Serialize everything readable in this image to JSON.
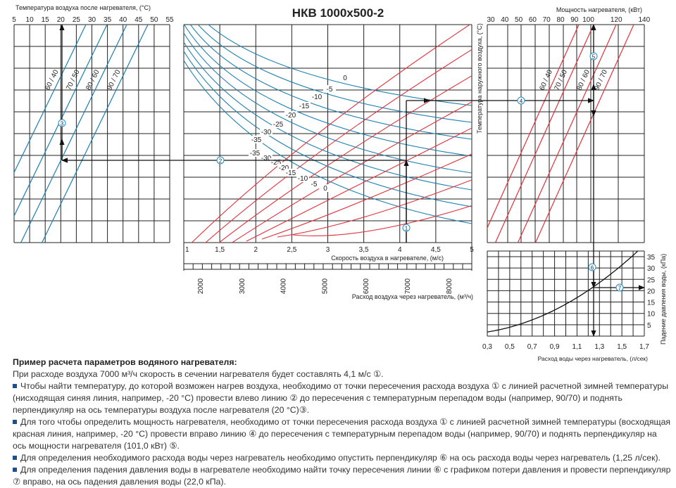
{
  "title": "НКВ 1000х500-2",
  "colors": {
    "blue": "#1a7fb0",
    "red": "#e0323c",
    "grid": "#222222",
    "marker": "#1a8fd0"
  },
  "chart_data": [
    {
      "id": "outlet-temp",
      "type": "line",
      "xlabel": "Температура воздуха после нагревателя, (°C)",
      "xticks": [
        "5",
        "10",
        "15",
        "20",
        "25",
        "30",
        "35",
        "40",
        "45",
        "50",
        "55"
      ],
      "xlim": [
        5,
        55
      ],
      "series": [
        {
          "name": "60 / 40"
        },
        {
          "name": "70 / 50"
        },
        {
          "name": "80 / 60"
        },
        {
          "name": "90 / 70"
        }
      ],
      "grid": true
    },
    {
      "id": "air-speed",
      "type": "line",
      "xlabel": "Скорость воздуха в нагревателе, (м/с)",
      "xticks": [
        "1",
        "1,5",
        "2",
        "2,5",
        "3",
        "3,5",
        "4",
        "4,5",
        "5"
      ],
      "xlim": [
        1,
        5
      ],
      "x2label": "Расход воздуха через нагреватель, (м³/ч)",
      "x2ticks": [
        "2000",
        "3000",
        "4000",
        "5000",
        "6000",
        "7000",
        "8000"
      ],
      "ylabel": "Температура наружного воздуха, (°C)",
      "blue_series_labels": [
        "0",
        "-5",
        "-10",
        "-15",
        "-20",
        "-25",
        "-30",
        "-35"
      ],
      "red_series_labels": [
        "-35",
        "-30",
        "-25",
        "-20",
        "-15",
        "-10",
        "-5",
        "0"
      ],
      "grid": true
    },
    {
      "id": "power",
      "type": "line",
      "xlabel": "Мощность нагревателя, (кВт)",
      "xticks": [
        "30",
        "40",
        "50",
        "60",
        "70",
        "80",
        "90",
        "100",
        "120",
        "140"
      ],
      "xlim": [
        30,
        140
      ],
      "series": [
        {
          "name": "60 / 40"
        },
        {
          "name": "70 / 50"
        },
        {
          "name": "80 / 60"
        },
        {
          "name": "90 / 70"
        }
      ],
      "grid": true
    },
    {
      "id": "pressure-drop",
      "type": "line",
      "xlabel": "Расход воды через нагреватель, (л/сек)",
      "xticks": [
        "0,3",
        "0,5",
        "0,7",
        "0,9",
        "1,1",
        "1,3",
        "1,5",
        "1,7"
      ],
      "xlim": [
        0.3,
        1.7
      ],
      "ylabel": "Падение давления воды, (кПа)",
      "yticks": [
        "5",
        "10",
        "15",
        "20",
        "25",
        "30",
        "35"
      ],
      "ylim": [
        0,
        37
      ],
      "example_point": {
        "x": 1.25,
        "y": 22.0
      },
      "grid": true
    }
  ],
  "example": {
    "air_flow": 7000,
    "air_speed": 4.1,
    "outside_temp": -20,
    "water_delta": "90/70",
    "outlet_temp": 20,
    "power_kw": 101.0,
    "water_flow": 1.25,
    "pressure_kpa": 22.0,
    "markers": [
      "1",
      "2",
      "3",
      "4",
      "5",
      "6",
      "7"
    ]
  },
  "text": {
    "heading": "Пример расчета параметров водяного нагревателя:",
    "p1": "При расходе воздуха 7000 м³/ч скорость в сечении нагревателя будет составлять 4,1 м/с ①.",
    "p2": "Чтобы найти температуру, до которой возможен нагрев воздуха, необходимо от точки пересечения расхода воздуха ① с линией расчетной зимней температуры (нисходящая синяя линия, например, -20 °C) провести влево линию ② до пересечения с температурным перепадом воды (например, 90/70) и поднять перпендикуляр на ось температуры воздуха после нагревателя (20 °C)③.",
    "p3": "Для того чтобы определить мощность нагревателя, необходимо от точки пересечения расхода воздуха ① с линией расчетной зимней температуры (восходящая красная линия, например, -20 °C) провести вправо линию ④ до пересечения с температурным перепадом воды (например, 90/70) и поднять перпендикуляр на ось мощности нагревателя (101,0 кВт) ⑤.",
    "p4": "Для определения необходимого расхода воды через нагреватель необходимо опустить перпендикуляр ⑥ на ось расхода воды через нагреватель (1,25 л/сек).",
    "p5": "Для определения падения давления воды в нагревателе необходимо найти точку пересечения линии ⑥ с графиком потери давления и провести перпендикуляр ⑦ вправо, на ось падения давления воды (22,0 кПа)."
  }
}
